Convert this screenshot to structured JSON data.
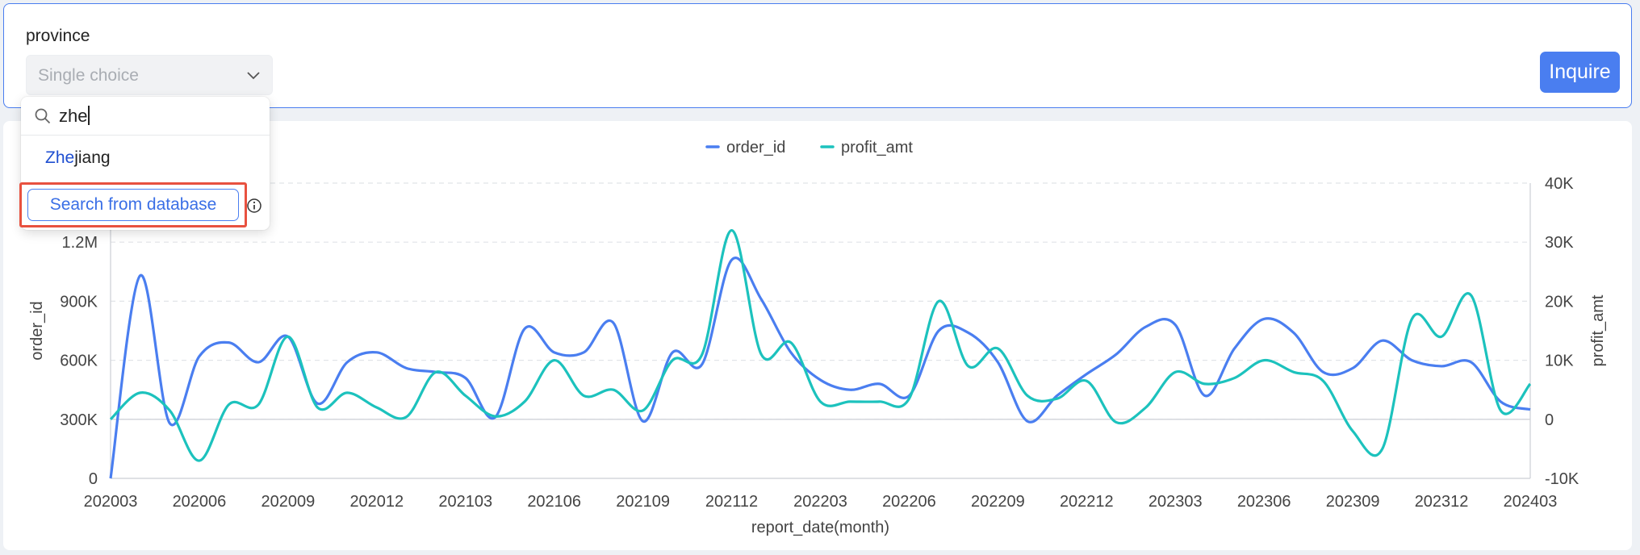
{
  "filter": {
    "label": "province",
    "select_placeholder": "Single choice",
    "inquire_label": "Inquire"
  },
  "dropdown": {
    "search_value": "zhe",
    "option_match": "Zhe",
    "option_rest": "jiang",
    "search_db_label": "Search from database",
    "icons": {
      "search": "search-icon",
      "info": "info-icon",
      "chevron": "chevron-down-icon"
    }
  },
  "colors": {
    "accent": "#4a7ef0",
    "order_series": "#4a7ef0",
    "profit_series": "#1cc2bd",
    "highlight_box": "#e8513f"
  },
  "chart_data": {
    "type": "line",
    "xlabel": "report_date(month)",
    "ylabel_left": "order_id",
    "ylabel_right": "profit_amt",
    "legend_position": "top-center",
    "grid": true,
    "x_ticks": [
      "202003",
      "202006",
      "202009",
      "202012",
      "202103",
      "202106",
      "202109",
      "202112",
      "202203",
      "202206",
      "202209",
      "202212",
      "202303",
      "202306",
      "202309",
      "202312",
      "202403"
    ],
    "y_left_ticks": [
      "0",
      "300K",
      "600K",
      "900K",
      "1.2M"
    ],
    "y_right_ticks": [
      "-10K",
      "0",
      "10K",
      "20K",
      "30K",
      "40K"
    ],
    "y_left_range": [
      0,
      1500000
    ],
    "y_right_range": [
      -10000,
      40000
    ],
    "x": [
      "202003",
      "202004",
      "202005",
      "202006",
      "202007",
      "202008",
      "202009",
      "202010",
      "202011",
      "202012",
      "202101",
      "202102",
      "202103",
      "202104",
      "202105",
      "202106",
      "202107",
      "202108",
      "202109",
      "202110",
      "202111",
      "202112",
      "202201",
      "202202",
      "202203",
      "202204",
      "202205",
      "202206",
      "202207",
      "202208",
      "202209",
      "202210",
      "202211",
      "202212",
      "202301",
      "202302",
      "202303",
      "202304",
      "202305",
      "202306",
      "202307",
      "202308",
      "202309",
      "202310",
      "202311",
      "202312",
      "202401",
      "202402",
      "202403"
    ],
    "series": [
      {
        "name": "order_id",
        "axis": "left",
        "values": [
          0,
          1030000,
          280000,
          620000,
          690000,
          590000,
          720000,
          380000,
          590000,
          640000,
          560000,
          540000,
          510000,
          310000,
          760000,
          640000,
          640000,
          790000,
          290000,
          640000,
          580000,
          1110000,
          910000,
          640000,
          500000,
          450000,
          480000,
          420000,
          750000,
          740000,
          590000,
          290000,
          420000,
          530000,
          630000,
          770000,
          780000,
          420000,
          660000,
          810000,
          740000,
          540000,
          560000,
          700000,
          600000,
          570000,
          590000,
          390000,
          350000
        ]
      },
      {
        "name": "profit_amt",
        "axis": "right",
        "values": [
          0,
          4500,
          1500,
          -7000,
          2500,
          2500,
          14000,
          2000,
          4500,
          2000,
          400,
          8000,
          4000,
          500,
          3000,
          10000,
          4000,
          5000,
          1500,
          10000,
          11000,
          32000,
          11000,
          13000,
          3000,
          3000,
          3000,
          3500,
          20000,
          9000,
          12000,
          4000,
          3500,
          6500,
          -500,
          2000,
          8000,
          6000,
          7000,
          10000,
          8000,
          6500,
          -2000,
          -5000,
          17000,
          14000,
          21000,
          1500,
          6000
        ]
      }
    ]
  }
}
